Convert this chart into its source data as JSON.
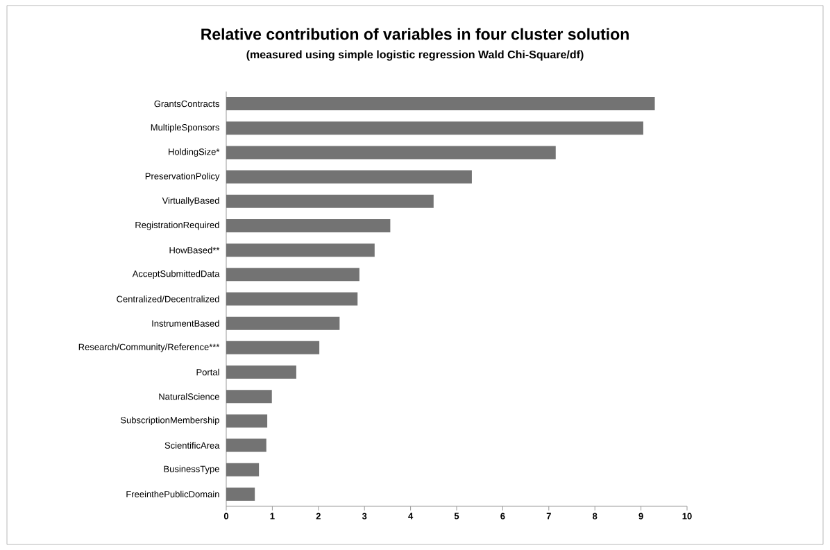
{
  "chart_data": {
    "type": "bar",
    "orientation": "horizontal",
    "title": "Relative contribution of variables in four cluster solution",
    "subtitle": "(measured using simple logistic regression Wald Chi-Square/df)",
    "categories": [
      "GrantsContracts",
      "MultipleSponsors",
      "HoldingSize*",
      "PreservationPolicy",
      "VirtuallyBased",
      "RegistrationRequired",
      "HowBased**",
      "AcceptSubmittedData",
      "Centralized/Decentralized",
      "InstrumentBased",
      "Research/Community/Reference***",
      "Portal",
      "NaturalScience",
      "SubscriptionMembership",
      "ScientificArea",
      "BusinessType",
      "FreeinthePublicDomain"
    ],
    "values": [
      9.3,
      9.05,
      7.15,
      5.33,
      4.5,
      3.56,
      3.22,
      2.89,
      2.85,
      2.46,
      2.02,
      1.52,
      0.99,
      0.89,
      0.87,
      0.71,
      0.62
    ],
    "color": "#737373",
    "xlim": [
      0,
      10
    ],
    "xticks": [
      0,
      1,
      2,
      3,
      4,
      5,
      6,
      7,
      8,
      9,
      10
    ]
  }
}
